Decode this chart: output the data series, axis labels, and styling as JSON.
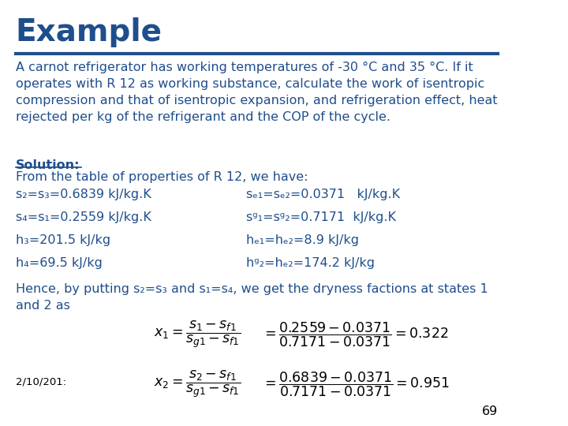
{
  "title": "Example",
  "title_color": "#1F4E8C",
  "title_fontsize": 28,
  "line_color": "#1F4E8C",
  "body_color": "#1F4E8C",
  "body_fontsize": 11.5,
  "background_color": "#FFFFFF",
  "page_number": "69",
  "date_label": "2/10/201:",
  "paragraph1": "A carnot refrigerator has working temperatures of -30 °C and 35 °C. If it\noperates with R 12 as working substance, calculate the work of isentropic\ncompression and that of isentropic expansion, and refrigeration effect, heat\nrejected per kg of the refrigerant and the COP of the cycle.",
  "solution_label": "Solution:",
  "line2": "From the table of properties of R 12, we have:",
  "col1_lines": [
    "s₂=s₃=0.6839 kJ/kg.K",
    "s₄=s₁=0.2559 kJ/kg.K",
    "h₃=201.5 kJ/kg",
    "h₄=69.5 kJ/kg"
  ],
  "col2_lines": [
    "sₑ₁=sₑ₂=0.0371   kJ/kg.K",
    "sᵍ₁=sᵍ₂=0.7171  kJ/kg.K",
    "hₑ₁=hₑ₂=8.9 kJ/kg",
    "hᵍ₂=hₑ₂=174.2 kJ/kg"
  ],
  "hence_text": "Hence, by putting s₂=s₃ and s₁=s₄, we get the dryness factions at states 1\nand 2 as",
  "formula1_lhs": "$x_1 = \\dfrac{s_1 - s_{f1}}{s_{g1} - s_{f1}}$",
  "formula1_rhs": "$= \\dfrac{0.2559 - 0.0371}{0.7171 - 0.0371} = 0.322$",
  "formula2_lhs": "$x_2 = \\dfrac{s_2 - s_{f1}}{s_{g1} - s_{f1}}$",
  "formula2_rhs": "$= \\dfrac{0.6839 - 0.0371}{0.7171 - 0.0371} = 0.951$"
}
